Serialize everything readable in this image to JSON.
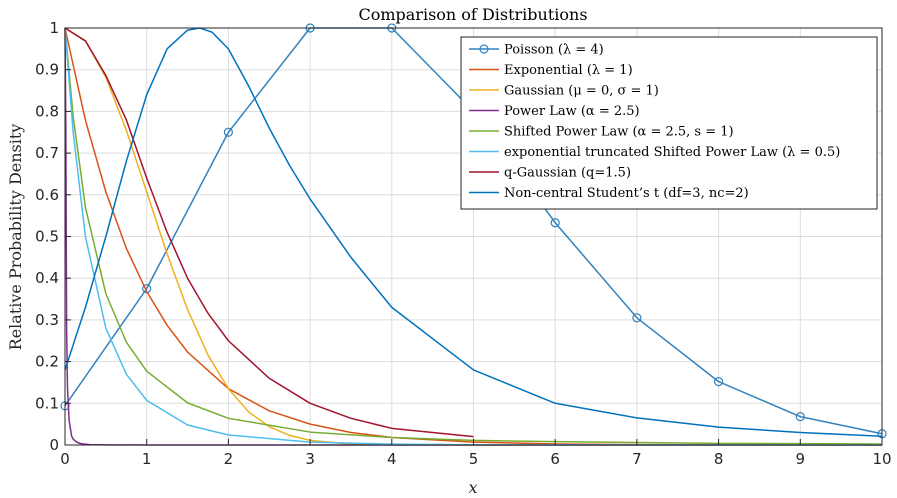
{
  "chart_data": {
    "type": "line",
    "title": "Comparison of Distributions",
    "xlabel": "x",
    "ylabel": "Relative Probability Density",
    "xlim": [
      0,
      10
    ],
    "ylim": [
      0,
      1
    ],
    "grid": true,
    "legend_position": "top-right",
    "xticks": [
      0,
      1,
      2,
      3,
      4,
      5,
      6,
      7,
      8,
      9,
      10
    ],
    "xtick_labels": [
      "0",
      "1",
      "2",
      "3",
      "4",
      "5",
      "6",
      "7",
      "8",
      "9",
      "10"
    ],
    "yticks": [
      0,
      0.1,
      0.2,
      0.3,
      0.4,
      0.5,
      0.6,
      0.7,
      0.8,
      0.9,
      1
    ],
    "ytick_labels": [
      "0",
      "0.1",
      "0.2",
      "0.3",
      "0.4",
      "0.5",
      "0.6",
      "0.7",
      "0.8",
      "0.9",
      "1"
    ],
    "series": [
      {
        "name": "Poisson (λ = 4)",
        "color": "#3182bd",
        "marker": "circle",
        "x": [
          0,
          1,
          2,
          3,
          4,
          5,
          6,
          7,
          8,
          9,
          10
        ],
        "y": [
          0.094,
          0.375,
          0.75,
          1.0,
          1.0,
          0.8,
          0.533,
          0.305,
          0.152,
          0.068,
          0.027
        ]
      },
      {
        "name": "Exponential (λ = 1)",
        "color": "#d95319",
        "marker": "none",
        "x": [
          0,
          0.25,
          0.5,
          0.75,
          1,
          1.25,
          1.5,
          2,
          2.5,
          3,
          3.5,
          4,
          5,
          6,
          7,
          8,
          9,
          10
        ],
        "y": [
          1.0,
          0.779,
          0.607,
          0.472,
          0.368,
          0.287,
          0.223,
          0.135,
          0.082,
          0.05,
          0.03,
          0.018,
          0.007,
          0.0025,
          0.0009,
          0.0003,
          0.0001,
          0.0
        ]
      },
      {
        "name": "Gaussian (μ = 0, σ = 1)",
        "color": "#edb120",
        "marker": "none",
        "x": [
          0,
          0.25,
          0.5,
          0.75,
          1,
          1.25,
          1.5,
          1.75,
          2,
          2.25,
          2.5,
          2.75,
          3,
          3.5,
          4,
          5,
          10
        ],
        "y": [
          1.0,
          0.969,
          0.882,
          0.755,
          0.607,
          0.458,
          0.325,
          0.216,
          0.135,
          0.079,
          0.044,
          0.023,
          0.011,
          0.002,
          0.0003,
          0.0,
          0.0
        ]
      },
      {
        "name": "Power Law (α = 2.5)",
        "color": "#7e2f8e",
        "marker": "none",
        "x": [
          0,
          0.01,
          0.02,
          0.03,
          0.05,
          0.08,
          0.1,
          0.15,
          0.2,
          0.3,
          0.5,
          1,
          10
        ],
        "y": [
          1.0,
          0.76,
          0.28,
          0.14,
          0.06,
          0.022,
          0.014,
          0.006,
          0.003,
          0.001,
          0.0003,
          0.0,
          0.0
        ]
      },
      {
        "name": "Shifted Power Law (α = 2.5, s = 1)",
        "color": "#77ac30",
        "marker": "none",
        "x": [
          0,
          0.1,
          0.25,
          0.5,
          0.75,
          1,
          1.5,
          2,
          3,
          4,
          5,
          6,
          8,
          10
        ],
        "y": [
          1.0,
          0.788,
          0.57,
          0.363,
          0.247,
          0.177,
          0.101,
          0.064,
          0.031,
          0.018,
          0.011,
          0.008,
          0.004,
          0.0025
        ]
      },
      {
        "name": "exponential truncated Shifted Power Law (λ = 0.5)",
        "color": "#4dbeee",
        "marker": "none",
        "x": [
          0,
          0.1,
          0.25,
          0.5,
          0.75,
          1,
          1.5,
          2,
          3,
          4,
          5,
          6,
          8,
          10
        ],
        "y": [
          1.0,
          0.75,
          0.5,
          0.28,
          0.17,
          0.107,
          0.048,
          0.024,
          0.007,
          0.002,
          0.0007,
          0.0002,
          0.0,
          0.0
        ]
      },
      {
        "name": "q-Gaussian (q=1.5)",
        "color": "#a2142f",
        "marker": "none",
        "x": [
          0,
          0.25,
          0.5,
          0.75,
          1,
          1.25,
          1.5,
          1.75,
          2,
          2.5,
          3,
          3.5,
          4,
          4.5,
          5
        ],
        "y": [
          1.0,
          0.969,
          0.886,
          0.78,
          0.64,
          0.51,
          0.4,
          0.316,
          0.25,
          0.16,
          0.1,
          0.064,
          0.04,
          0.03,
          0.02
        ]
      },
      {
        "name": "Non-central Student’s t (df=3, nc=2)",
        "color": "#0072bd",
        "marker": "none",
        "x": [
          0,
          0.25,
          0.5,
          0.75,
          1,
          1.25,
          1.5,
          1.65,
          1.8,
          2,
          2.25,
          2.5,
          2.75,
          3,
          3.5,
          4,
          5,
          6,
          7,
          8,
          9,
          10
        ],
        "y": [
          0.18,
          0.33,
          0.5,
          0.68,
          0.84,
          0.95,
          0.995,
          1.0,
          0.99,
          0.95,
          0.86,
          0.76,
          0.67,
          0.59,
          0.45,
          0.33,
          0.18,
          0.1,
          0.065,
          0.043,
          0.03,
          0.021
        ]
      }
    ]
  }
}
